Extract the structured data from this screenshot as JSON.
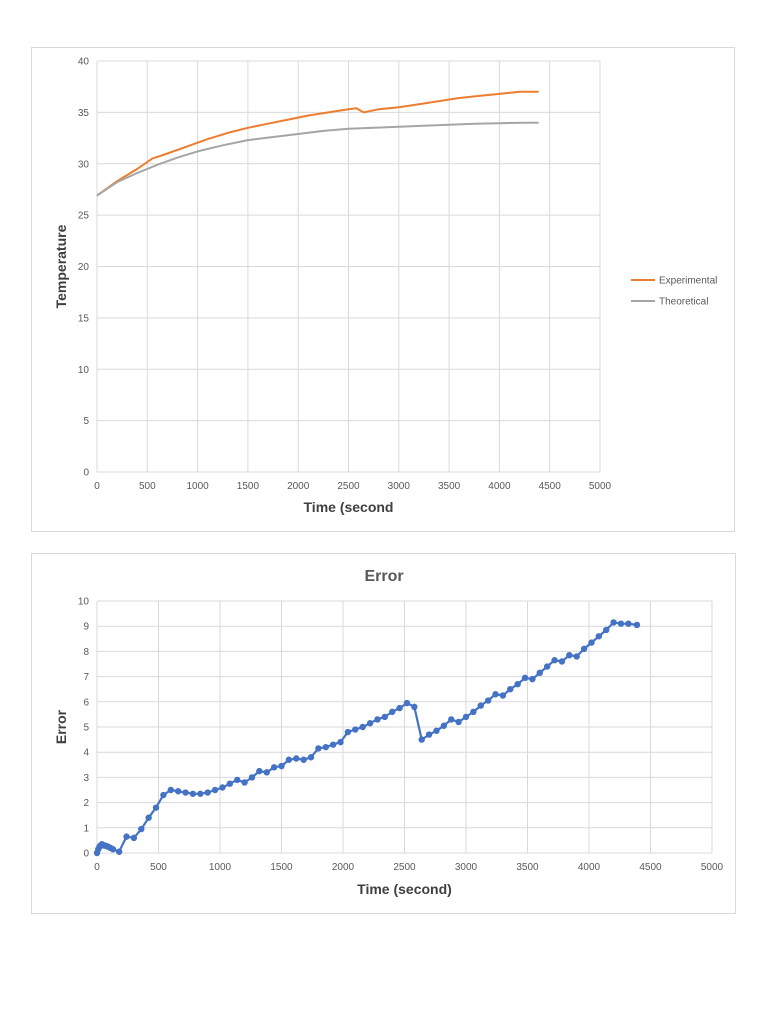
{
  "chart_data": [
    {
      "type": "line",
      "title": "",
      "xlabel": "Time (second",
      "ylabel": "Temperature",
      "xlim": [
        0,
        5000
      ],
      "ylim": [
        0,
        40
      ],
      "xticks": [
        0,
        500,
        1000,
        1500,
        2000,
        2500,
        3000,
        3500,
        4000,
        4500,
        5000
      ],
      "yticks": [
        0,
        5,
        10,
        15,
        20,
        25,
        30,
        35,
        40
      ],
      "grid": true,
      "legend_position": "right",
      "series": [
        {
          "name": "Experimental",
          "color": "#ed7d31",
          "x": [
            0,
            200,
            400,
            550,
            700,
            900,
            1100,
            1300,
            1500,
            1700,
            1900,
            2100,
            2300,
            2500,
            2580,
            2650,
            2800,
            3000,
            3200,
            3400,
            3600,
            3800,
            4000,
            4200,
            4390
          ],
          "y": [
            26.9,
            28.3,
            29.5,
            30.5,
            31.0,
            31.7,
            32.4,
            33.0,
            33.5,
            33.9,
            34.3,
            34.7,
            35.0,
            35.3,
            35.4,
            35.0,
            35.3,
            35.5,
            35.8,
            36.1,
            36.4,
            36.6,
            36.8,
            37.0,
            37.0
          ]
        },
        {
          "name": "Theoretical",
          "color": "#a5a5a5",
          "x": [
            0,
            200,
            400,
            600,
            800,
            1000,
            1250,
            1500,
            1750,
            2000,
            2250,
            2500,
            2750,
            3000,
            3250,
            3500,
            3750,
            4000,
            4250,
            4390
          ],
          "y": [
            26.9,
            28.2,
            29.1,
            29.9,
            30.6,
            31.2,
            31.8,
            32.3,
            32.6,
            32.9,
            33.2,
            33.4,
            33.5,
            33.6,
            33.7,
            33.8,
            33.9,
            33.95,
            34.0,
            34.0
          ]
        }
      ]
    },
    {
      "type": "line",
      "title": "Error",
      "xlabel": "Time (second)",
      "ylabel": "Error",
      "xlim": [
        0,
        5000
      ],
      "ylim": [
        0,
        10
      ],
      "xticks": [
        0,
        500,
        1000,
        1500,
        2000,
        2500,
        3000,
        3500,
        4000,
        4500,
        5000
      ],
      "yticks": [
        0,
        1,
        2,
        3,
        4,
        5,
        6,
        7,
        8,
        9,
        10
      ],
      "grid": true,
      "series": [
        {
          "name": "",
          "color": "#4472c4",
          "x": [
            0,
            10,
            20,
            30,
            40,
            50,
            60,
            75,
            90,
            110,
            130,
            180,
            240,
            300,
            360,
            420,
            480,
            540,
            600,
            660,
            720,
            780,
            840,
            900,
            960,
            1020,
            1080,
            1140,
            1200,
            1260,
            1320,
            1380,
            1440,
            1500,
            1560,
            1620,
            1680,
            1740,
            1800,
            1860,
            1920,
            1980,
            2040,
            2100,
            2160,
            2220,
            2280,
            2340,
            2400,
            2460,
            2520,
            2580,
            2640,
            2700,
            2760,
            2820,
            2880,
            2940,
            3000,
            3060,
            3120,
            3180,
            3240,
            3300,
            3360,
            3420,
            3480,
            3540,
            3600,
            3660,
            3720,
            3780,
            3840,
            3900,
            3960,
            4020,
            4080,
            4140,
            4200,
            4260,
            4320,
            4390
          ],
          "y": [
            0,
            0.15,
            0.25,
            0.3,
            0.35,
            0.3,
            0.3,
            0.28,
            0.25,
            0.2,
            0.15,
            0.05,
            0.65,
            0.6,
            0.95,
            1.4,
            1.8,
            2.3,
            2.5,
            2.45,
            2.4,
            2.35,
            2.35,
            2.4,
            2.5,
            2.6,
            2.75,
            2.9,
            2.8,
            3.0,
            3.25,
            3.2,
            3.4,
            3.45,
            3.7,
            3.75,
            3.7,
            3.8,
            4.15,
            4.2,
            4.3,
            4.4,
            4.8,
            4.9,
            5.0,
            5.15,
            5.3,
            5.4,
            5.6,
            5.75,
            5.95,
            5.8,
            4.5,
            4.7,
            4.85,
            5.05,
            5.3,
            5.2,
            5.4,
            5.6,
            5.85,
            6.05,
            6.3,
            6.25,
            6.5,
            6.7,
            6.95,
            6.9,
            7.15,
            7.4,
            7.65,
            7.6,
            7.85,
            7.8,
            8.1,
            8.35,
            8.6,
            8.85,
            9.15,
            9.1,
            9.1,
            9.05
          ]
        }
      ]
    }
  ]
}
